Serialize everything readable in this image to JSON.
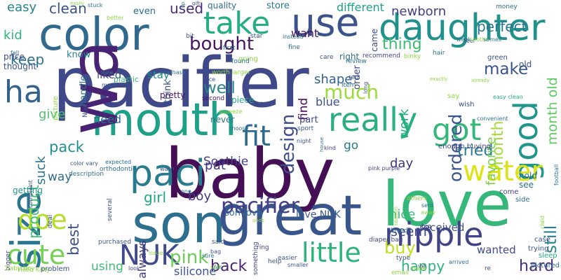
{
  "words": [
    {
      "text": "pacifier",
      "color": "#3f4889"
    },
    {
      "text": "baby",
      "color": "#440f54"
    },
    {
      "text": "love",
      "color": "#35b779"
    },
    {
      "text": "great",
      "color": "#39568c"
    },
    {
      "text": "son",
      "color": "#2d6f8e"
    },
    {
      "text": "mouth",
      "color": "#1fa088"
    },
    {
      "text": "color",
      "color": "#31688e"
    },
    {
      "text": "wa",
      "color": "#482374"
    },
    {
      "text": "use",
      "color": "#3b528b"
    },
    {
      "text": "daughter",
      "color": "#21918c"
    },
    {
      "text": "take",
      "color": "#26ad81"
    },
    {
      "text": "paci",
      "color": "#287c8e"
    },
    {
      "text": "size",
      "color": "#2b758e"
    },
    {
      "text": "nipple",
      "color": "#404387"
    },
    {
      "text": "really",
      "color": "#2ab07f"
    },
    {
      "text": "got",
      "color": "#35b779"
    },
    {
      "text": "good",
      "color": "#1f958b"
    },
    {
      "text": "water",
      "color": "#dde318"
    },
    {
      "text": "fit",
      "color": "#2f6b8e"
    },
    {
      "text": "ha",
      "color": "#33638d"
    },
    {
      "text": "little",
      "color": "#2eb37c"
    },
    {
      "text": "NUK",
      "color": "#3e4a89"
    },
    {
      "text": "cute",
      "color": "#75d054"
    },
    {
      "text": "doe",
      "color": "#b5de2b"
    },
    {
      "text": "pacifier",
      "color": "#433e85"
    },
    {
      "text": "pink",
      "color": "#6ccd5a"
    },
    {
      "text": "buy",
      "color": "#c0df25"
    },
    {
      "text": "much",
      "color": "#9dd93b"
    },
    {
      "text": "make",
      "color": "#3a538b"
    },
    {
      "text": "design",
      "color": "#3e4c8a"
    },
    {
      "text": "ordered",
      "color": "#3a548c"
    },
    {
      "text": "month",
      "color": "#a5db36"
    },
    {
      "text": "back",
      "color": "#482475"
    },
    {
      "text": "well",
      "color": "#26828e"
    },
    {
      "text": "bought",
      "color": "#471365"
    },
    {
      "text": "thing",
      "color": "#3fbc73"
    },
    {
      "text": "keep",
      "color": "#2c738e"
    },
    {
      "text": "tried",
      "color": "#287d8e"
    },
    {
      "text": "newborn",
      "color": "#423f85"
    },
    {
      "text": "perfect",
      "color": "#2a768e"
    },
    {
      "text": "month old",
      "color": "#5ec962"
    },
    {
      "text": "still",
      "color": "#26828e"
    },
    {
      "text": "hard",
      "color": "#472c7a"
    },
    {
      "text": "clean",
      "color": "#3b518b"
    },
    {
      "text": "used",
      "color": "#472a7a"
    },
    {
      "text": "easy",
      "color": "#25848e"
    },
    {
      "text": "kid",
      "color": "#31b57b"
    },
    {
      "text": "pack",
      "color": "#21908d"
    },
    {
      "text": "give",
      "color": "#4ac16d"
    },
    {
      "text": "product",
      "color": "#40bd72"
    },
    {
      "text": "suck",
      "color": "#2c728e"
    },
    {
      "text": "boy",
      "color": "#433d84"
    },
    {
      "text": "girl",
      "color": "#22a785"
    },
    {
      "text": "best",
      "color": "#3c4f8a"
    },
    {
      "text": "way",
      "color": "#306a8e"
    },
    {
      "text": "day",
      "color": "#453581"
    },
    {
      "text": "work",
      "color": "#25ac82"
    },
    {
      "text": "shape",
      "color": "#34618d"
    },
    {
      "text": "blue",
      "color": "#3b518b"
    },
    {
      "text": "find",
      "color": "#46075a"
    },
    {
      "text": "happy",
      "color": "#2db27d"
    },
    {
      "text": "seem",
      "color": "#3e4989"
    },
    {
      "text": "nice",
      "color": "#3bbb75"
    },
    {
      "text": "go",
      "color": "#29798e"
    },
    {
      "text": "Soothie",
      "color": "#433e85"
    },
    {
      "text": "favorite",
      "color": "#7ad151"
    },
    {
      "text": "put",
      "color": "#46327e"
    },
    {
      "text": "always",
      "color": "#443a83"
    },
    {
      "text": "using",
      "color": "#3dbc74"
    },
    {
      "text": "silicone",
      "color": "#3b528b"
    },
    {
      "text": "love NUK",
      "color": "#38598c"
    },
    {
      "text": "son love",
      "color": "#2e6e8e"
    },
    {
      "text": "received",
      "color": "#3b528b"
    },
    {
      "text": "wanted",
      "color": "#3e4a89"
    },
    {
      "text": "liked",
      "color": "#3e4c8a"
    },
    {
      "text": "stay",
      "color": "#228c8d"
    },
    {
      "text": "need",
      "color": "#2d708e"
    },
    {
      "text": "want",
      "color": "#471063"
    },
    {
      "text": "different",
      "color": "#1fa287"
    },
    {
      "text": "even",
      "color": "#2f6c8e"
    },
    {
      "text": "store",
      "color": "#29798e"
    },
    {
      "text": "quality",
      "color": "#2f6c8e"
    },
    {
      "text": "right",
      "color": "#2e6e8e"
    },
    {
      "text": "order",
      "color": "#3f4788"
    },
    {
      "text": "came",
      "color": "#3f4788"
    },
    {
      "text": "know",
      "color": "#25838e"
    },
    {
      "text": "price",
      "color": "#404588"
    },
    {
      "text": "thought",
      "color": "#3a548c"
    },
    {
      "text": "handle",
      "color": "#2d708e"
    },
    {
      "text": "piece",
      "color": "#22a884"
    },
    {
      "text": "pretty",
      "color": "#471365"
    },
    {
      "text": "part",
      "color": "#3f4788"
    },
    {
      "text": "never",
      "color": "#2c728e"
    },
    {
      "text": "old",
      "color": "#3b528b"
    },
    {
      "text": "think",
      "color": "#3b528b"
    },
    {
      "text": "getting",
      "color": "#1f978b"
    },
    {
      "text": "plastic",
      "color": "#3bbb75"
    },
    {
      "text": "second",
      "color": "#471365"
    },
    {
      "text": "hold",
      "color": "#2d708e"
    },
    {
      "text": "see",
      "color": "#2d708e"
    },
    {
      "text": "come",
      "color": "#404588"
    },
    {
      "text": "side",
      "color": "#2d708e"
    },
    {
      "text": "pictured",
      "color": "#2d708e"
    },
    {
      "text": "sleep",
      "color": "#22a884"
    },
    {
      "text": "trying",
      "color": "#3b528b"
    },
    {
      "text": "case",
      "color": "#3b528b"
    },
    {
      "text": "child",
      "color": "#8fd744"
    },
    {
      "text": "football",
      "color": "#2d708e"
    },
    {
      "text": "easy clean",
      "color": "#22a884"
    },
    {
      "text": "convenient",
      "color": "#2d708e"
    },
    {
      "text": "enough buying",
      "color": "#404588"
    },
    {
      "text": "wish",
      "color": "#3b528b"
    },
    {
      "text": "say",
      "color": "#8fd744"
    },
    {
      "text": "green",
      "color": "#3b528b"
    },
    {
      "text": "hair",
      "color": "#2d708e"
    },
    {
      "text": "money",
      "color": "#2d708e"
    },
    {
      "text": "feel",
      "color": "#3b528b"
    },
    {
      "text": "binky",
      "color": "#8fd744"
    },
    {
      "text": "recommend",
      "color": "#404588"
    },
    {
      "text": "care",
      "color": "#3b528b"
    },
    {
      "text": "review",
      "color": "#2d708e"
    },
    {
      "text": "instead",
      "color": "#2d708e"
    },
    {
      "text": "fine",
      "color": "#2d708e"
    },
    {
      "text": "red",
      "color": "#3b528b"
    },
    {
      "text": "item",
      "color": "#2d708e"
    },
    {
      "text": "long",
      "color": "#3b528b"
    },
    {
      "text": "going",
      "color": "#8fd744"
    },
    {
      "text": "star",
      "color": "#3b528b"
    },
    {
      "text": "bit",
      "color": "#3b528b"
    },
    {
      "text": "first",
      "color": "#2d708e"
    },
    {
      "text": "found",
      "color": "#2d708e"
    },
    {
      "text": "worth larger",
      "color": "#8fd744"
    },
    {
      "text": "squeeze",
      "color": "#8fd744"
    },
    {
      "text": "born",
      "color": "#3b528b"
    },
    {
      "text": "choose",
      "color": "#2d708e"
    },
    {
      "text": "sport",
      "color": "#3b528b"
    },
    {
      "text": "night",
      "color": "#3b528b"
    },
    {
      "text": "kind",
      "color": "#404588"
    },
    {
      "text": "house",
      "color": "#2d708e"
    },
    {
      "text": "pink purple",
      "color": "#404588"
    },
    {
      "text": "away",
      "color": "#8fd744"
    },
    {
      "text": "others",
      "color": "#8fd744"
    },
    {
      "text": "big",
      "color": "#404588"
    },
    {
      "text": "sent",
      "color": "#2d708e"
    },
    {
      "text": "reason",
      "color": "#8fd744"
    },
    {
      "text": "type",
      "color": "#3b528b"
    },
    {
      "text": "loved",
      "color": "#2d708e"
    },
    {
      "text": "diaper bag",
      "color": "#404588"
    },
    {
      "text": "re",
      "color": "#3b528b"
    },
    {
      "text": "ve",
      "color": "#404588"
    },
    {
      "text": "arrived",
      "color": "#2d708e"
    },
    {
      "text": "made",
      "color": "#8fd744"
    },
    {
      "text": "email",
      "color": "#8fd744"
    },
    {
      "text": "smaller",
      "color": "#3b528b"
    },
    {
      "text": "easier",
      "color": "#3b528b"
    },
    {
      "text": "ring",
      "color": "#404588"
    },
    {
      "text": "help",
      "color": "#3b528b"
    },
    {
      "text": "something",
      "color": "#404588"
    },
    {
      "text": "ands",
      "color": "#8fd744"
    },
    {
      "text": "bag",
      "color": "#3b528b"
    },
    {
      "text": "sure",
      "color": "#2d708e"
    },
    {
      "text": "far",
      "color": "#2d708e"
    },
    {
      "text": "spit",
      "color": "#8fd744"
    },
    {
      "text": "said",
      "color": "#3b528b"
    },
    {
      "text": "one",
      "color": "#2d708e"
    },
    {
      "text": "wash",
      "color": "#3b528b"
    },
    {
      "text": "expected",
      "color": "#2d708e"
    },
    {
      "text": "orthodontic",
      "color": "#2d708e"
    },
    {
      "text": "issue",
      "color": "#8fd744"
    },
    {
      "text": "look",
      "color": "#404588"
    },
    {
      "text": "purchased",
      "color": "#3b528b"
    },
    {
      "text": "several",
      "color": "#3b528b"
    },
    {
      "text": "deal",
      "color": "#404588"
    },
    {
      "text": "complaint",
      "color": "#3b528b"
    },
    {
      "text": "color vary",
      "color": "#3b528b"
    },
    {
      "text": "description",
      "color": "#2d708e"
    },
    {
      "text": "picture",
      "color": "#8fd744"
    },
    {
      "text": "Now",
      "color": "#3b528b"
    },
    {
      "text": "bigger",
      "color": "#404588"
    },
    {
      "text": "baby boy",
      "color": "#8fd744"
    },
    {
      "text": "Hello Kitty",
      "color": "#8fd744"
    },
    {
      "text": "problem",
      "color": "#3b528b"
    },
    {
      "text": "fall",
      "color": "#2d708e"
    },
    {
      "text": "new",
      "color": "#2d708e"
    },
    {
      "text": "many",
      "color": "#3b528b"
    },
    {
      "text": "purchase",
      "color": "#2d708e"
    },
    {
      "text": "face",
      "color": "#3b528b"
    },
    {
      "text": "stuck",
      "color": "#2d708e"
    },
    {
      "text": "better",
      "color": "#8fd744"
    },
    {
      "text": "easily",
      "color": "#8fd744"
    },
    {
      "text": "clip",
      "color": "#2d708e"
    },
    {
      "text": "gift",
      "color": "#3b528b"
    },
    {
      "text": "exactly",
      "color": "#8fd744"
    },
    {
      "text": "already",
      "color": "#8fd744"
    },
    {
      "text": "week",
      "color": "#2d708e"
    },
    {
      "text": "soothe",
      "color": "#8fd744"
    },
    {
      "text": "somes",
      "color": "#2d708e"
    }
  ]
}
